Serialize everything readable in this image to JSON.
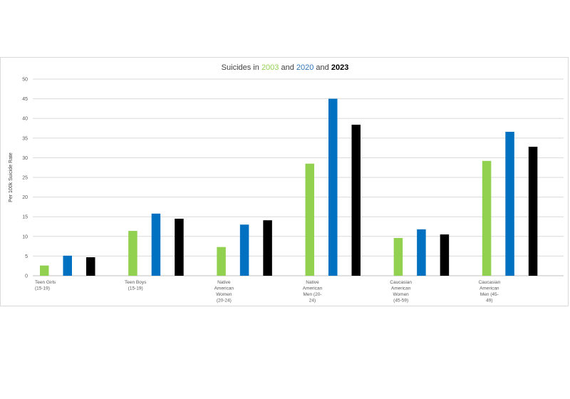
{
  "chart_data": {
    "type": "bar",
    "title_parts": [
      {
        "text": "Suicides in ",
        "color": "#404040",
        "bold": false
      },
      {
        "text": "2003",
        "color": "#92d050",
        "bold": false
      },
      {
        "text": " and ",
        "color": "#404040",
        "bold": false
      },
      {
        "text": "2020",
        "color": "#2e75b6",
        "bold": false
      },
      {
        "text": " and ",
        "color": "#404040",
        "bold": false
      },
      {
        "text": "2023",
        "color": "#000000",
        "bold": true
      }
    ],
    "ylabel": "Per 100k Suicide Rate",
    "ylim": [
      0,
      50
    ],
    "yticks": [
      0,
      5,
      10,
      15,
      20,
      25,
      30,
      35,
      40,
      45,
      50
    ],
    "grid": true,
    "categories": [
      [
        "Teen Girls",
        "(15-19)"
      ],
      [
        "Teen Boys",
        "(15-19)"
      ],
      [
        "Native",
        "American",
        "Women",
        "(20-24)"
      ],
      [
        "Native",
        "American",
        "Men (20-",
        "24)"
      ],
      [
        "Caucasian",
        "American",
        "Women",
        "(45-59)"
      ],
      [
        "Caucasian",
        "American",
        "Men (45-",
        "49)"
      ]
    ],
    "series": [
      {
        "color": "#92d050",
        "values": [
          2.6,
          11.4,
          7.3,
          28.5,
          9.6,
          29.2
        ]
      },
      {
        "color": "#0070c0",
        "values": [
          5.1,
          15.8,
          13.0,
          45.0,
          11.8,
          36.6
        ]
      },
      {
        "color": "#000000",
        "values": [
          4.7,
          14.5,
          14.1,
          38.4,
          10.5,
          32.8
        ]
      }
    ]
  }
}
